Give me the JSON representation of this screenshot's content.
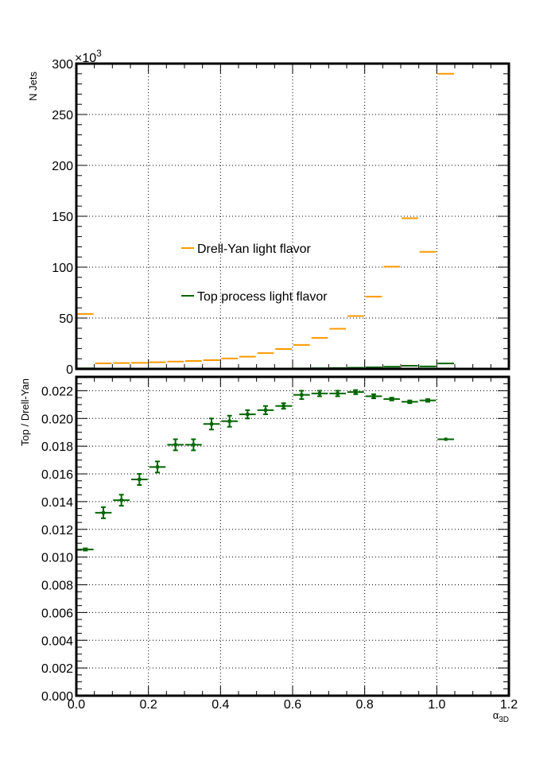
{
  "chart_data": [
    {
      "type": "step-histogram",
      "ylabel": "N Jets",
      "y_multiplier": "×10",
      "y_multiplier_exp": "3",
      "xlim": [
        0,
        1.2
      ],
      "ylim": [
        0,
        300
      ],
      "y_ticks": [
        0,
        50,
        100,
        150,
        200,
        250,
        300
      ],
      "grid": true,
      "legend_position": "center-left",
      "bin_edges": [
        0,
        0.05,
        0.1,
        0.15,
        0.2,
        0.25,
        0.3,
        0.35,
        0.4,
        0.45,
        0.5,
        0.55,
        0.6,
        0.65,
        0.7,
        0.75,
        0.8,
        0.85,
        0.9,
        0.95,
        1.0,
        1.05
      ],
      "series": [
        {
          "name": "Drell-Yan light flavor",
          "color": "#ff9900",
          "values": [
            54,
            5.5,
            5.8,
            6.0,
            6.5,
            7.2,
            7.8,
            8.6,
            10.3,
            12.0,
            15.5,
            19.5,
            23.5,
            30.5,
            39.5,
            52,
            71,
            100.5,
            148,
            115,
            290
          ]
        },
        {
          "name": "Top process light flavor",
          "color": "#006600",
          "values": [
            0.57,
            0.07,
            0.08,
            0.09,
            0.11,
            0.13,
            0.14,
            0.17,
            0.2,
            0.24,
            0.32,
            0.41,
            0.51,
            0.66,
            0.86,
            1.14,
            1.54,
            2.15,
            3.14,
            2.45,
            5.37
          ]
        }
      ]
    },
    {
      "type": "scatter-errorbar",
      "xlabel": "α",
      "xlabel_sub": "3D",
      "ylabel": "Top / Drell-Yan",
      "xlim": [
        0,
        1.2
      ],
      "ylim": [
        0,
        0.023
      ],
      "x_ticks": [
        "0.0",
        "0.2",
        "0.4",
        "0.6",
        "0.8",
        "1.0",
        "1.2"
      ],
      "y_ticks": [
        "0.000",
        "0.002",
        "0.004",
        "0.006",
        "0.008",
        "0.010",
        "0.012",
        "0.014",
        "0.016",
        "0.018",
        "0.020",
        "0.022"
      ],
      "grid": true,
      "color": "#006600",
      "points": [
        {
          "x": 0.025,
          "y": 0.01055,
          "yerr": 8e-05
        },
        {
          "x": 0.075,
          "y": 0.0132,
          "yerr": 0.0004
        },
        {
          "x": 0.125,
          "y": 0.0141,
          "yerr": 0.0004
        },
        {
          "x": 0.175,
          "y": 0.0156,
          "yerr": 0.0004
        },
        {
          "x": 0.225,
          "y": 0.0165,
          "yerr": 0.0004
        },
        {
          "x": 0.275,
          "y": 0.0181,
          "yerr": 0.0004
        },
        {
          "x": 0.325,
          "y": 0.0181,
          "yerr": 0.0004
        },
        {
          "x": 0.375,
          "y": 0.0196,
          "yerr": 0.0004
        },
        {
          "x": 0.425,
          "y": 0.0198,
          "yerr": 0.0004
        },
        {
          "x": 0.475,
          "y": 0.0203,
          "yerr": 0.0003
        },
        {
          "x": 0.525,
          "y": 0.0206,
          "yerr": 0.0003
        },
        {
          "x": 0.575,
          "y": 0.0209,
          "yerr": 0.0002
        },
        {
          "x": 0.625,
          "y": 0.0217,
          "yerr": 0.0003
        },
        {
          "x": 0.675,
          "y": 0.0218,
          "yerr": 0.0002
        },
        {
          "x": 0.725,
          "y": 0.0218,
          "yerr": 0.0002
        },
        {
          "x": 0.775,
          "y": 0.0219,
          "yerr": 0.00015
        },
        {
          "x": 0.825,
          "y": 0.0216,
          "yerr": 0.00015
        },
        {
          "x": 0.875,
          "y": 0.0214,
          "yerr": 0.0001
        },
        {
          "x": 0.925,
          "y": 0.0212,
          "yerr": 0.0001
        },
        {
          "x": 0.975,
          "y": 0.0213,
          "yerr": 0.0001
        },
        {
          "x": 1.025,
          "y": 0.0185,
          "yerr": 4e-05
        }
      ]
    }
  ]
}
